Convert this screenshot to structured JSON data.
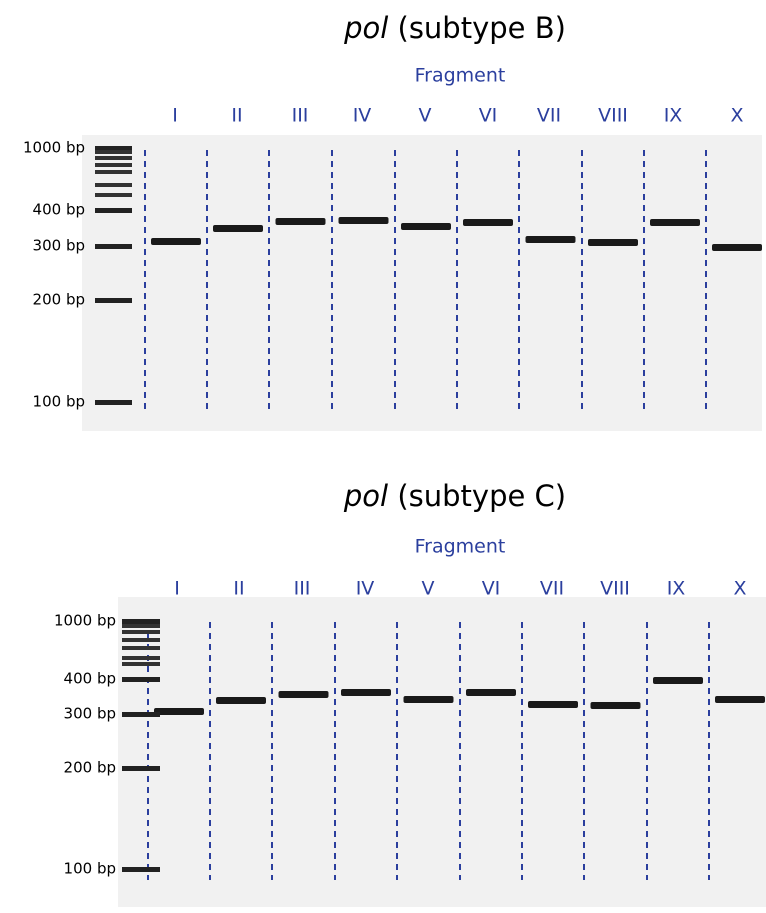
{
  "panels": [
    {
      "title_italic": "pol",
      "title_rest": "(subtype B)",
      "axis_label": "Fragment",
      "lanes": [
        "I",
        "II",
        "III",
        "IV",
        "V",
        "VI",
        "VII",
        "VIII",
        "IX",
        "X"
      ],
      "ladder": [
        "1000 bp",
        "400 bp",
        "300 bp",
        "200 bp",
        "100 bp"
      ]
    },
    {
      "title_italic": "pol",
      "title_rest": "(subtype C)",
      "axis_label": "Fragment",
      "lanes": [
        "I",
        "II",
        "III",
        "IV",
        "V",
        "VI",
        "VII",
        "VIII",
        "IX",
        "X"
      ],
      "ladder": [
        "1000 bp",
        "400 bp",
        "300 bp",
        "200 bp",
        "100 bp"
      ]
    }
  ]
}
